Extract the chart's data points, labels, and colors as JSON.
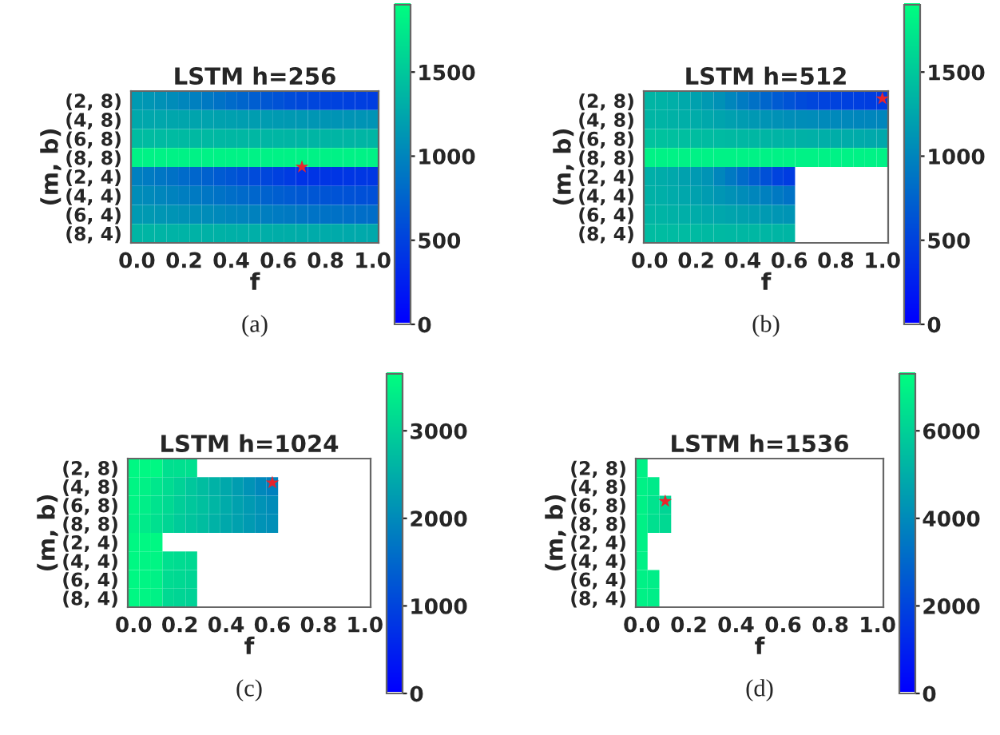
{
  "chart_data": [
    {
      "type": "heatmap",
      "title": "LSTM h=256",
      "xlabel": "f",
      "ylabel": "(m, b)",
      "annotations": [
        "(a)"
      ],
      "series": [
        {
          "type": "scatter",
          "marker": "star",
          "color": "#e8242c",
          "x": [
            0.7
          ],
          "values": [
            3.5
          ]
        }
      ],
      "x": [
        0,
        0.05,
        0.1,
        0.15,
        0.2,
        0.25,
        0.3,
        0.35,
        0.4,
        0.45,
        0.5,
        0.55,
        0.6,
        0.65,
        0.7,
        0.75,
        0.8,
        0.85,
        0.9,
        0.95,
        1.0
      ],
      "y_categories": [
        "(2, 8)",
        "(4, 8)",
        "(6, 8)",
        "(8, 8)",
        "(2, 4)",
        "(4, 4)",
        "(6, 4)",
        "(8, 4)"
      ],
      "xlim": [
        -0.025,
        1.025
      ],
      "xticks": [
        {
          "value": 0,
          "label": "0.0"
        },
        {
          "value": 0.2,
          "label": "0.2"
        },
        {
          "value": 0.4,
          "label": "0.4"
        },
        {
          "value": 0.6,
          "label": "0.6"
        },
        {
          "value": 0.8,
          "label": "0.8"
        },
        {
          "value": 1,
          "label": "1.0"
        }
      ],
      "clim": [
        0,
        1900
      ],
      "cticks": [
        0,
        500,
        1000,
        1500
      ],
      "cells": [
        [
          1150,
          1120,
          1080,
          1040,
          1000,
          950,
          900,
          850,
          800,
          750,
          700,
          650,
          610,
          570,
          540,
          520,
          500,
          490,
          480,
          470,
          460
        ],
        [
          1250,
          1245,
          1240,
          1235,
          1230,
          1220,
          1210,
          1200,
          1190,
          1180,
          1170,
          1160,
          1150,
          1140,
          1130,
          1120,
          1110,
          1100,
          1100,
          1100,
          1100
        ],
        [
          1400,
          1400,
          1395,
          1390,
          1385,
          1380,
          1375,
          1370,
          1365,
          1360,
          1360,
          1355,
          1355,
          1350,
          1350,
          1350,
          1350,
          1350,
          1350,
          1350,
          1350
        ],
        [
          1800,
          1800,
          1800,
          1800,
          1800,
          1800,
          1800,
          1800,
          1800,
          1800,
          1800,
          1800,
          1800,
          1800,
          1800,
          1800,
          1800,
          1800,
          1800,
          1800,
          1800
        ],
        [
          950,
          920,
          880,
          840,
          800,
          760,
          720,
          680,
          640,
          600,
          560,
          520,
          480,
          440,
          380,
          390,
          395,
          400,
          405,
          410,
          415
        ],
        [
          1050,
          1030,
          1000,
          970,
          940,
          910,
          880,
          850,
          820,
          790,
          760,
          730,
          700,
          680,
          660,
          640,
          630,
          620,
          610,
          600,
          600
        ],
        [
          1150,
          1140,
          1120,
          1100,
          1080,
          1060,
          1040,
          1020,
          1000,
          980,
          960,
          940,
          920,
          900,
          880,
          860,
          850,
          840,
          830,
          820,
          810
        ],
        [
          1350,
          1345,
          1340,
          1335,
          1330,
          1325,
          1320,
          1315,
          1310,
          1305,
          1300,
          1295,
          1290,
          1285,
          1280,
          1275,
          1270,
          1265,
          1260,
          1255,
          1250
        ]
      ]
    },
    {
      "type": "heatmap",
      "title": "LSTM h=512",
      "xlabel": "f",
      "ylabel": "(m, b)",
      "annotations": [
        "(b)"
      ],
      "series": [
        {
          "type": "scatter",
          "marker": "star",
          "color": "#e8242c",
          "x": [
            1.0
          ],
          "values": [
            -0.1
          ]
        }
      ],
      "x": [
        0,
        0.05,
        0.1,
        0.15,
        0.2,
        0.25,
        0.3,
        0.35,
        0.4,
        0.45,
        0.5,
        0.55,
        0.6,
        0.65,
        0.7,
        0.75,
        0.8,
        0.85,
        0.9,
        0.95,
        1.0
      ],
      "y_categories": [
        "(2, 8)",
        "(4, 8)",
        "(6, 8)",
        "(8, 8)",
        "(2, 4)",
        "(4, 4)",
        "(6, 4)",
        "(8, 4)"
      ],
      "xlim": [
        -0.025,
        1.025
      ],
      "xticks": [
        {
          "value": 0,
          "label": "0.0"
        },
        {
          "value": 0.2,
          "label": "0.2"
        },
        {
          "value": 0.4,
          "label": "0.4"
        },
        {
          "value": 0.6,
          "label": "0.6"
        },
        {
          "value": 0.8,
          "label": "0.8"
        },
        {
          "value": 1,
          "label": "1.0"
        }
      ],
      "clim": [
        0,
        1900
      ],
      "cticks": [
        0,
        500,
        1000,
        1500
      ],
      "cells": [
        [
          1350,
          1330,
          1300,
          1260,
          1200,
          1140,
          1080,
          1000,
          920,
          840,
          760,
          680,
          620,
          560,
          520,
          500,
          490,
          480,
          470,
          460,
          450
        ],
        [
          1350,
          1340,
          1320,
          1300,
          1280,
          1250,
          1220,
          1190,
          1160,
          1130,
          1100,
          1080,
          1060,
          1050,
          1040,
          1030,
          1020,
          1010,
          1000,
          1000,
          1000
        ],
        [
          1450,
          1440,
          1430,
          1420,
          1410,
          1400,
          1390,
          1380,
          1370,
          1360,
          1350,
          1340,
          1330,
          1320,
          1310,
          1300,
          1290,
          1280,
          1270,
          1260,
          1250
        ],
        [
          1800,
          1800,
          1800,
          1800,
          1800,
          1800,
          1800,
          1800,
          1800,
          1800,
          1800,
          1800,
          1800,
          1800,
          1800,
          1800,
          1800,
          1800,
          1800,
          1800,
          1800
        ],
        [
          1300,
          1280,
          1250,
          1200,
          1150,
          1100,
          1000,
          900,
          800,
          700,
          600,
          500,
          450,
          null,
          null,
          null,
          null,
          null,
          null,
          null,
          null
        ],
        [
          1320,
          1300,
          1270,
          1240,
          1200,
          1160,
          1120,
          1080,
          1040,
          1000,
          950,
          900,
          850,
          null,
          null,
          null,
          null,
          null,
          null,
          null,
          null
        ],
        [
          1350,
          1340,
          1320,
          1300,
          1280,
          1260,
          1240,
          1220,
          1200,
          1180,
          1150,
          1120,
          1100,
          null,
          null,
          null,
          null,
          null,
          null,
          null,
          null
        ],
        [
          1400,
          1400,
          1395,
          1390,
          1385,
          1380,
          1375,
          1370,
          1365,
          1360,
          1355,
          1350,
          1350,
          null,
          null,
          null,
          null,
          null,
          null,
          null,
          null
        ]
      ]
    },
    {
      "type": "heatmap",
      "title": "LSTM h=1024",
      "xlabel": "f",
      "ylabel": "(m, b)",
      "annotations": [
        "(c)"
      ],
      "series": [
        {
          "type": "scatter",
          "marker": "star",
          "color": "#e8242c",
          "x": [
            0.6
          ],
          "values": [
            0.8
          ]
        }
      ],
      "x": [
        0,
        0.05,
        0.1,
        0.15,
        0.2,
        0.25,
        0.3,
        0.35,
        0.4,
        0.45,
        0.5,
        0.55,
        0.6,
        0.65,
        0.7,
        0.75,
        0.8,
        0.85,
        0.9,
        0.95,
        1.0
      ],
      "y_categories": [
        "(2, 8)",
        "(4, 8)",
        "(6, 8)",
        "(8, 8)",
        "(2, 4)",
        "(4, 4)",
        "(6, 4)",
        "(8, 4)"
      ],
      "xlim": [
        -0.025,
        1.025
      ],
      "xticks": [
        {
          "value": 0,
          "label": "0.0"
        },
        {
          "value": 0.2,
          "label": "0.2"
        },
        {
          "value": 0.4,
          "label": "0.4"
        },
        {
          "value": 0.6,
          "label": "0.6"
        },
        {
          "value": 0.8,
          "label": "0.8"
        },
        {
          "value": 1,
          "label": "1.0"
        }
      ],
      "clim": [
        0,
        3650
      ],
      "cticks": [
        0,
        1000,
        2000,
        3000
      ],
      "cells": [
        [
          3550,
          3550,
          3550,
          3200,
          3200,
          3200,
          null,
          null,
          null,
          null,
          null,
          null,
          null,
          null,
          null,
          null,
          null,
          null,
          null,
          null,
          null
        ],
        [
          3500,
          3450,
          3300,
          3150,
          3000,
          2850,
          2700,
          2550,
          2400,
          2250,
          2100,
          1950,
          1850,
          null,
          null,
          null,
          null,
          null,
          null,
          null,
          null
        ],
        [
          3500,
          3400,
          3250,
          3100,
          2950,
          2850,
          2750,
          2600,
          2450,
          2300,
          2200,
          2100,
          2000,
          null,
          null,
          null,
          null,
          null,
          null,
          null,
          null
        ],
        [
          3450,
          3350,
          3200,
          3050,
          2900,
          2800,
          2700,
          2550,
          2400,
          2300,
          2200,
          2100,
          2050,
          null,
          null,
          null,
          null,
          null,
          null,
          null,
          null
        ],
        [
          3550,
          3550,
          3550,
          null,
          null,
          null,
          null,
          null,
          null,
          null,
          null,
          null,
          null,
          null,
          null,
          null,
          null,
          null,
          null,
          null,
          null
        ],
        [
          3550,
          3500,
          3500,
          3200,
          3150,
          3100,
          null,
          null,
          null,
          null,
          null,
          null,
          null,
          null,
          null,
          null,
          null,
          null,
          null,
          null,
          null
        ],
        [
          3550,
          3500,
          3450,
          3150,
          3100,
          3050,
          null,
          null,
          null,
          null,
          null,
          null,
          null,
          null,
          null,
          null,
          null,
          null,
          null,
          null,
          null
        ],
        [
          3550,
          3500,
          3450,
          3100,
          3050,
          3000,
          null,
          null,
          null,
          null,
          null,
          null,
          null,
          null,
          null,
          null,
          null,
          null,
          null,
          null,
          null
        ]
      ]
    },
    {
      "type": "heatmap",
      "title": "LSTM h=1536",
      "xlabel": "f",
      "ylabel": "(m, b)",
      "annotations": [
        "(d)"
      ],
      "series": [
        {
          "type": "scatter",
          "marker": "star",
          "color": "#e8242c",
          "x": [
            0.1
          ],
          "values": [
            1.8
          ]
        }
      ],
      "x": [
        0,
        0.05,
        0.1,
        0.15,
        0.2,
        0.25,
        0.3,
        0.35,
        0.4,
        0.45,
        0.5,
        0.55,
        0.6,
        0.65,
        0.7,
        0.75,
        0.8,
        0.85,
        0.9,
        0.95,
        1.0
      ],
      "y_categories": [
        "(2, 8)",
        "(4, 8)",
        "(6, 8)",
        "(8, 8)",
        "(2, 4)",
        "(4, 4)",
        "(6, 4)",
        "(8, 4)"
      ],
      "xlim": [
        -0.025,
        1.025
      ],
      "xticks": [
        {
          "value": 0,
          "label": "0.0"
        },
        {
          "value": 0.2,
          "label": "0.2"
        },
        {
          "value": 0.4,
          "label": "0.4"
        },
        {
          "value": 0.6,
          "label": "0.6"
        },
        {
          "value": 0.8,
          "label": "0.8"
        },
        {
          "value": 1,
          "label": "1.0"
        }
      ],
      "clim": [
        0,
        7300
      ],
      "cticks": [
        0,
        2000,
        4000,
        6000
      ],
      "cells": [
        [
          6900,
          null,
          null,
          null,
          null,
          null,
          null,
          null,
          null,
          null,
          null,
          null,
          null,
          null,
          null,
          null,
          null,
          null,
          null,
          null,
          null
        ],
        [
          6900,
          6700,
          null,
          null,
          null,
          null,
          null,
          null,
          null,
          null,
          null,
          null,
          null,
          null,
          null,
          null,
          null,
          null,
          null,
          null,
          null
        ],
        [
          6900,
          6500,
          6100,
          null,
          null,
          null,
          null,
          null,
          null,
          null,
          null,
          null,
          null,
          null,
          null,
          null,
          null,
          null,
          null,
          null,
          null
        ],
        [
          6900,
          6400,
          6200,
          null,
          null,
          null,
          null,
          null,
          null,
          null,
          null,
          null,
          null,
          null,
          null,
          null,
          null,
          null,
          null,
          null,
          null
        ],
        [
          6900,
          null,
          null,
          null,
          null,
          null,
          null,
          null,
          null,
          null,
          null,
          null,
          null,
          null,
          null,
          null,
          null,
          null,
          null,
          null,
          null
        ],
        [
          6900,
          null,
          null,
          null,
          null,
          null,
          null,
          null,
          null,
          null,
          null,
          null,
          null,
          null,
          null,
          null,
          null,
          null,
          null,
          null,
          null
        ],
        [
          6900,
          6800,
          null,
          null,
          null,
          null,
          null,
          null,
          null,
          null,
          null,
          null,
          null,
          null,
          null,
          null,
          null,
          null,
          null,
          null,
          null
        ],
        [
          6900,
          6800,
          null,
          null,
          null,
          null,
          null,
          null,
          null,
          null,
          null,
          null,
          null,
          null,
          null,
          null,
          null,
          null,
          null,
          null,
          null
        ]
      ]
    }
  ]
}
